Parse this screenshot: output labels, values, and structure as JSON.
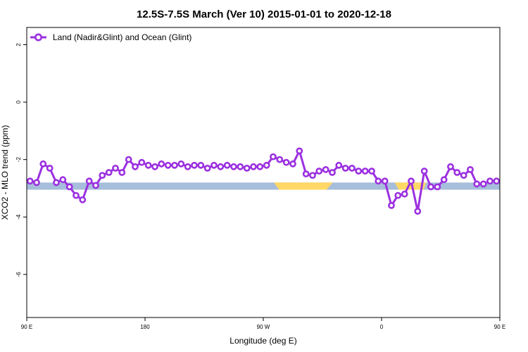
{
  "chart_data": {
    "type": "line",
    "title": "12.5S-7.5S March (Ver 10)   2015-01-01 to 2020-12-18",
    "xlabel": "Longitude (deg E)",
    "ylabel": "XCO2 - MLO trend (ppm)",
    "xlim": [
      90,
      450
    ],
    "ylim": [
      -7.5,
      2.6
    ],
    "x_ticks": [
      {
        "value": 90,
        "label": "90 E"
      },
      {
        "value": 180,
        "label": "180"
      },
      {
        "value": 270,
        "label": "90 W"
      },
      {
        "value": 360,
        "label": "0"
      },
      {
        "value": 450,
        "label": "90 E"
      }
    ],
    "y_ticks": [
      {
        "value": 2,
        "label": "2"
      },
      {
        "value": 0,
        "label": "0"
      },
      {
        "value": -2,
        "label": "-2"
      },
      {
        "value": -4,
        "label": "-4"
      },
      {
        "value": -6,
        "label": "-6"
      }
    ],
    "grid": false,
    "legend_position": "top-left",
    "series": [
      {
        "name": "Land (Nadir&Glint) and Ocean (Glint)",
        "color": "#9b30e0",
        "x": [
          92.5,
          97.5,
          102.5,
          107.5,
          112.5,
          117.5,
          122.5,
          127.5,
          132.5,
          137.5,
          142.5,
          147.5,
          152.5,
          157.5,
          162.5,
          167.5,
          172.5,
          177.5,
          182.5,
          187.5,
          192.5,
          197.5,
          202.5,
          207.5,
          212.5,
          217.5,
          222.5,
          227.5,
          232.5,
          237.5,
          242.5,
          247.5,
          252.5,
          257.5,
          262.5,
          267.5,
          272.5,
          277.5,
          282.5,
          287.5,
          292.5,
          297.5,
          302.5,
          307.5,
          312.5,
          317.5,
          322.5,
          327.5,
          332.5,
          337.5,
          342.5,
          347.5,
          352.5,
          357.5,
          362.5,
          367.5,
          372.5,
          377.5,
          382.5,
          387.5,
          392.5,
          397.5,
          402.5,
          407.5,
          412.5,
          417.5,
          422.5,
          427.5,
          432.5,
          437.5,
          442.5,
          447.5
        ],
        "y": [
          -2.75,
          -2.8,
          -2.15,
          -2.3,
          -2.8,
          -2.7,
          -2.95,
          -3.25,
          -3.4,
          -2.75,
          -2.9,
          -2.55,
          -2.45,
          -2.3,
          -2.45,
          -2.0,
          -2.25,
          -2.1,
          -2.2,
          -2.25,
          -2.15,
          -2.2,
          -2.2,
          -2.15,
          -2.25,
          -2.2,
          -2.2,
          -2.3,
          -2.2,
          -2.25,
          -2.2,
          -2.25,
          -2.25,
          -2.3,
          -2.25,
          -2.25,
          -2.2,
          -1.9,
          -2.0,
          -2.1,
          -2.15,
          -1.7,
          -2.5,
          -2.55,
          -2.4,
          -2.35,
          -2.45,
          -2.2,
          -2.3,
          -2.3,
          -2.4,
          -2.4,
          -2.4,
          -2.75,
          -2.75,
          -3.6,
          -3.25,
          -3.2,
          -2.75,
          -3.8,
          -2.4,
          -2.95,
          -2.95,
          -2.7,
          -2.25,
          -2.45,
          -2.55,
          -2.35,
          -2.85,
          -2.85,
          -2.75,
          -2.75
        ]
      }
    ],
    "background_band": {
      "y_range": [
        -3.05,
        -2.8
      ],
      "ocean_color": "#a6bddb",
      "land_color": "#ffd866",
      "land_segments": [
        [
          278,
          282,
          318,
          323
        ],
        [
          370,
          373,
          392,
          394
        ]
      ]
    }
  }
}
